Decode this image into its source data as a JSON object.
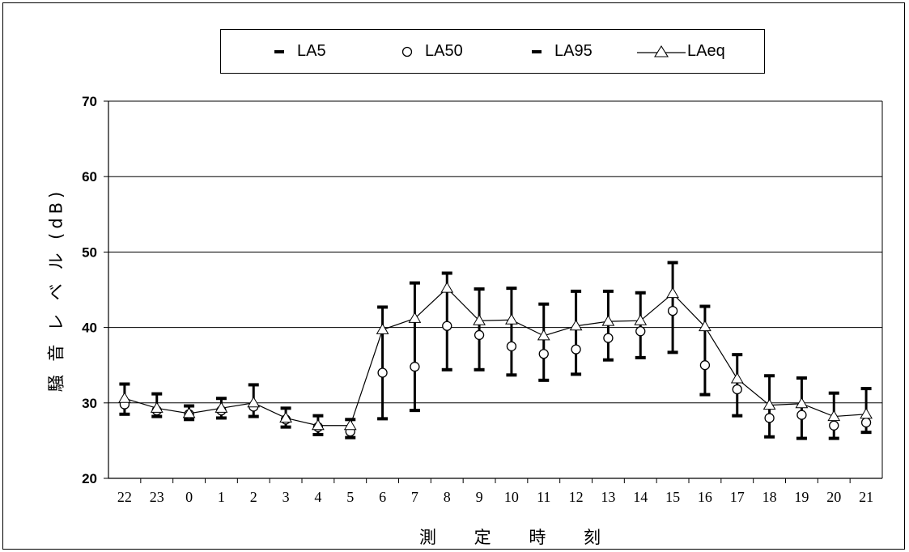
{
  "chart_data": {
    "type": "line",
    "title": "",
    "xlabel": "測 定 時 刻",
    "ylabel": "騒 音 レ ベ ル (dB)",
    "ylim": [
      20,
      70
    ],
    "yticks": [
      20,
      30,
      40,
      50,
      60,
      70
    ],
    "grid": true,
    "legend_position": "top",
    "categories": [
      "22",
      "23",
      "0",
      "1",
      "2",
      "3",
      "4",
      "5",
      "6",
      "7",
      "8",
      "9",
      "10",
      "11",
      "12",
      "13",
      "14",
      "15",
      "16",
      "17",
      "18",
      "19",
      "20",
      "21"
    ],
    "series": [
      {
        "name": "LA5",
        "marker": "dash",
        "color": "#000000",
        "values": [
          32.5,
          31.2,
          29.6,
          30.6,
          32.4,
          29.3,
          28.3,
          27.8,
          42.7,
          45.9,
          47.2,
          45.1,
          45.2,
          43.1,
          44.8,
          44.8,
          44.6,
          48.6,
          42.8,
          36.4,
          33.6,
          33.3,
          31.3,
          31.9
        ]
      },
      {
        "name": "LA50",
        "marker": "circle",
        "color": "#000000",
        "values": [
          29.8,
          29.0,
          28.5,
          29.0,
          29.5,
          27.8,
          26.8,
          26.2,
          34.0,
          34.8,
          40.2,
          39.0,
          37.5,
          36.5,
          37.1,
          38.6,
          39.5,
          42.2,
          35.0,
          31.8,
          28.0,
          28.4,
          27.0,
          27.4
        ]
      },
      {
        "name": "LA95",
        "marker": "dash",
        "color": "#000000",
        "values": [
          28.5,
          28.2,
          27.8,
          28.0,
          28.2,
          26.8,
          25.8,
          25.4,
          27.9,
          29.0,
          34.4,
          34.4,
          33.7,
          33.0,
          33.8,
          35.7,
          36.0,
          36.7,
          31.1,
          28.3,
          25.5,
          25.3,
          25.3,
          26.1
        ]
      },
      {
        "name": "LAeq",
        "marker": "triangle",
        "color": "#000000",
        "values": [
          30.6,
          29.3,
          28.6,
          29.3,
          30.0,
          28.0,
          27.0,
          27.0,
          39.7,
          41.2,
          45.2,
          40.9,
          41.0,
          38.9,
          40.2,
          40.8,
          40.9,
          44.5,
          40.1,
          33.2,
          29.7,
          29.9,
          28.2,
          28.5
        ]
      }
    ]
  }
}
